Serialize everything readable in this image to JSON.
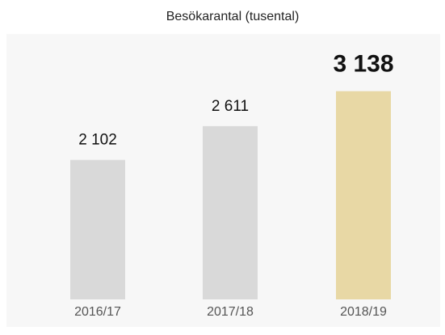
{
  "chart_data": {
    "type": "bar",
    "title": "Besökarantal (tusental)",
    "categories": [
      "2016/17",
      "2017/18",
      "2018/19"
    ],
    "values": [
      2102,
      2611,
      3138
    ],
    "value_labels": [
      "2 102",
      "2 611",
      "3 138"
    ],
    "colors": [
      "#d9d9d9",
      "#d9d9d9",
      "#e8d8a5"
    ]
  }
}
